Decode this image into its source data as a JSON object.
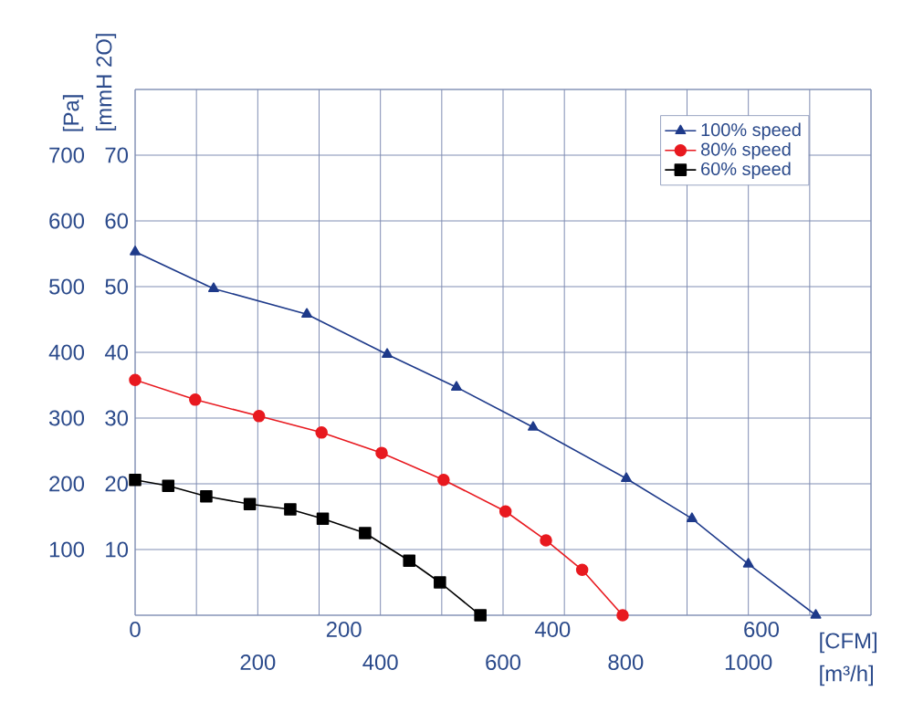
{
  "chart_data": {
    "type": "line",
    "xlabel": "[m³/h]",
    "x2label": "[CFM]",
    "ylabel": "[Pa]",
    "y2label": "[mmH 2O]",
    "xlim": [
      0,
      1200
    ],
    "xticks": [
      {
        "value": 0,
        "label": null
      },
      {
        "value": 100,
        "label": null
      },
      200,
      {
        "value": 300,
        "label": null
      },
      400,
      {
        "value": 500,
        "label": null
      },
      600,
      {
        "value": 700,
        "label": null
      },
      800,
      {
        "value": 900,
        "label": null
      },
      1000,
      {
        "value": 1100,
        "label": null
      },
      {
        "value": 1200,
        "label": null
      }
    ],
    "x2lim": [
      0,
      705
    ],
    "x2ticks": [
      0,
      200,
      400,
      600
    ],
    "ylim": [
      0,
      800
    ],
    "yticks": [
      {
        "value": 0,
        "label": null
      },
      100,
      200,
      300,
      400,
      500,
      600,
      700,
      {
        "value": 800,
        "label": null
      }
    ],
    "y2lim": [
      0,
      80
    ],
    "y2ticks": [
      10,
      20,
      30,
      40,
      50,
      60,
      70
    ],
    "grid": true,
    "legend": "top right",
    "series": [
      {
        "name": "100% speed",
        "color": "#1e3a8a",
        "marker": "triangle",
        "x": [
          0,
          128,
          280,
          411,
          524,
          649,
          801,
          908,
          1000,
          1110
        ],
        "values": [
          553,
          497,
          458,
          397,
          347,
          286,
          208,
          147,
          78,
          0
        ]
      },
      {
        "name": "80% speed",
        "color": "#e8191f",
        "marker": "circle",
        "x": [
          0,
          98,
          202,
          304,
          402,
          503,
          604,
          670,
          729,
          795
        ],
        "values": [
          358,
          328,
          303,
          278,
          247,
          206,
          158,
          114,
          69,
          0
        ]
      },
      {
        "name": "60% speed",
        "color": "#000000",
        "marker": "square",
        "x": [
          0,
          54,
          116,
          187,
          253,
          306,
          375,
          447,
          497,
          563
        ],
        "values": [
          206,
          197,
          181,
          169,
          161,
          147,
          125,
          83,
          50,
          0
        ]
      }
    ]
  }
}
